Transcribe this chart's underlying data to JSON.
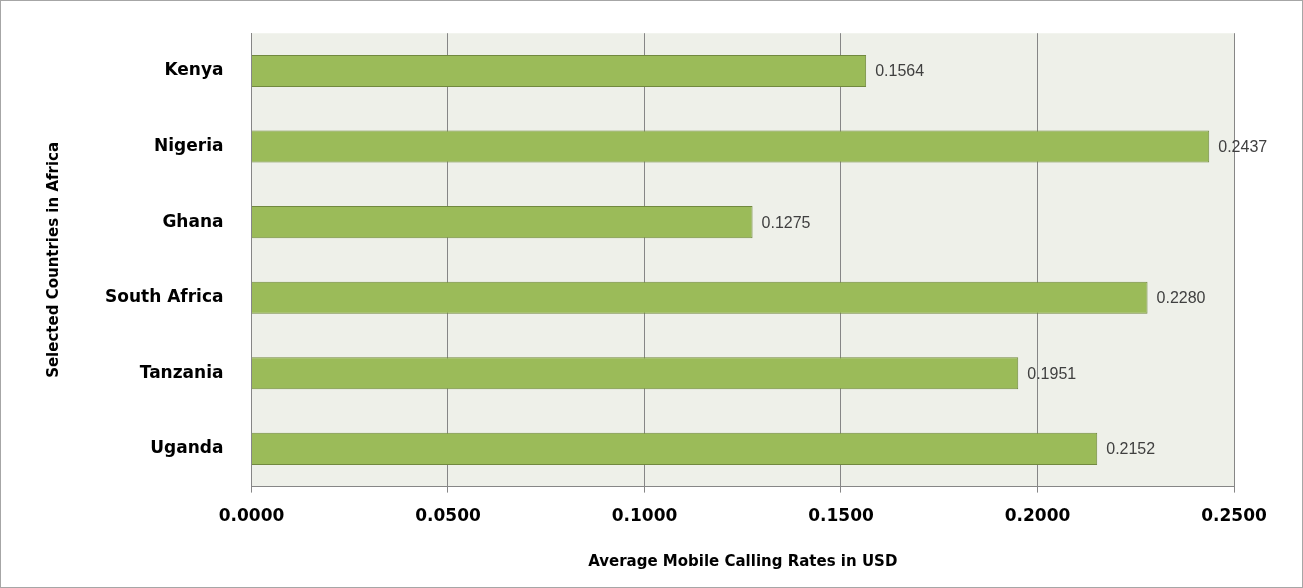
{
  "chart_data": {
    "type": "bar",
    "orientation": "horizontal",
    "xlabel": "Average Mobile Calling Rates in USD",
    "ylabel": "Selected Countries in Africa",
    "categories": [
      "Kenya",
      "Nigeria",
      "Ghana",
      "South Africa",
      "Tanzania",
      "Uganda"
    ],
    "values": [
      0.1564,
      0.2437,
      0.1275,
      0.228,
      0.1951,
      0.2152
    ],
    "value_labels": [
      "0.1564",
      "0.2437",
      "0.1275",
      "0.2280",
      "0.1951",
      "0.2152"
    ],
    "color": "#9bbb59",
    "xlim": [
      0,
      0.25
    ],
    "xticks": [
      {
        "value": 0,
        "label": "0.0000"
      },
      {
        "value": 0.05,
        "label": "0.0500"
      },
      {
        "value": 0.1,
        "label": "0.1000"
      },
      {
        "value": 0.15,
        "label": "0.1500"
      },
      {
        "value": 0.2,
        "label": "0.2000"
      },
      {
        "value": 0.25,
        "label": "0.2500"
      }
    ],
    "grid": "x",
    "legend": false
  }
}
